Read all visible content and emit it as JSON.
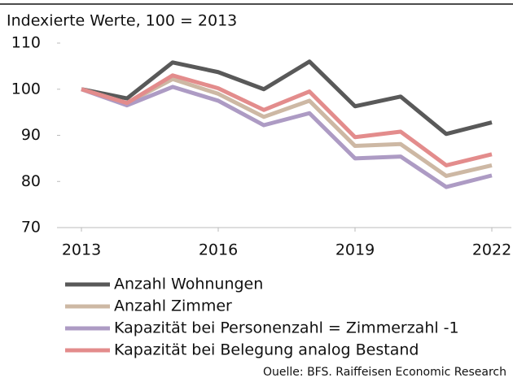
{
  "chart_data": {
    "type": "line",
    "title": "Indexierte Werte, 100 = 2013",
    "x": [
      2013,
      2014,
      2015,
      2016,
      2017,
      2018,
      2019,
      2020,
      2021,
      2022
    ],
    "series": [
      {
        "name": "Anzahl Wohnungen",
        "color": "#595959",
        "values": [
          100,
          98,
          105.8,
          103.7,
          100,
          106,
          96.3,
          98.4,
          90.3,
          92.8
        ]
      },
      {
        "name": "Anzahl Zimmer",
        "color": "#cdb8a4",
        "values": [
          100,
          97,
          102.2,
          99,
          94,
          97.5,
          87.7,
          88.1,
          81.2,
          83.5
        ]
      },
      {
        "name": "Kapazität bei Personenzahl = Zimmerzahl -1",
        "color": "#ad9bc4",
        "values": [
          100,
          96.5,
          100.5,
          97.5,
          92.2,
          94.8,
          85,
          85.4,
          78.8,
          81.3
        ]
      },
      {
        "name": "Kapazität bei Belegung analog Bestand",
        "color": "#e38c8c",
        "values": [
          100,
          97,
          103,
          100.2,
          95.5,
          99.5,
          89.6,
          90.8,
          83.5,
          85.9
        ]
      }
    ],
    "xlim": [
      2013,
      2022
    ],
    "xticks": [
      2013,
      2016,
      2019,
      2022
    ],
    "ylim": [
      70,
      110
    ],
    "yticks": [
      70,
      80,
      90,
      100,
      110
    ],
    "source": "Ouelle: BFS. Raiffeisen Economic Research"
  }
}
